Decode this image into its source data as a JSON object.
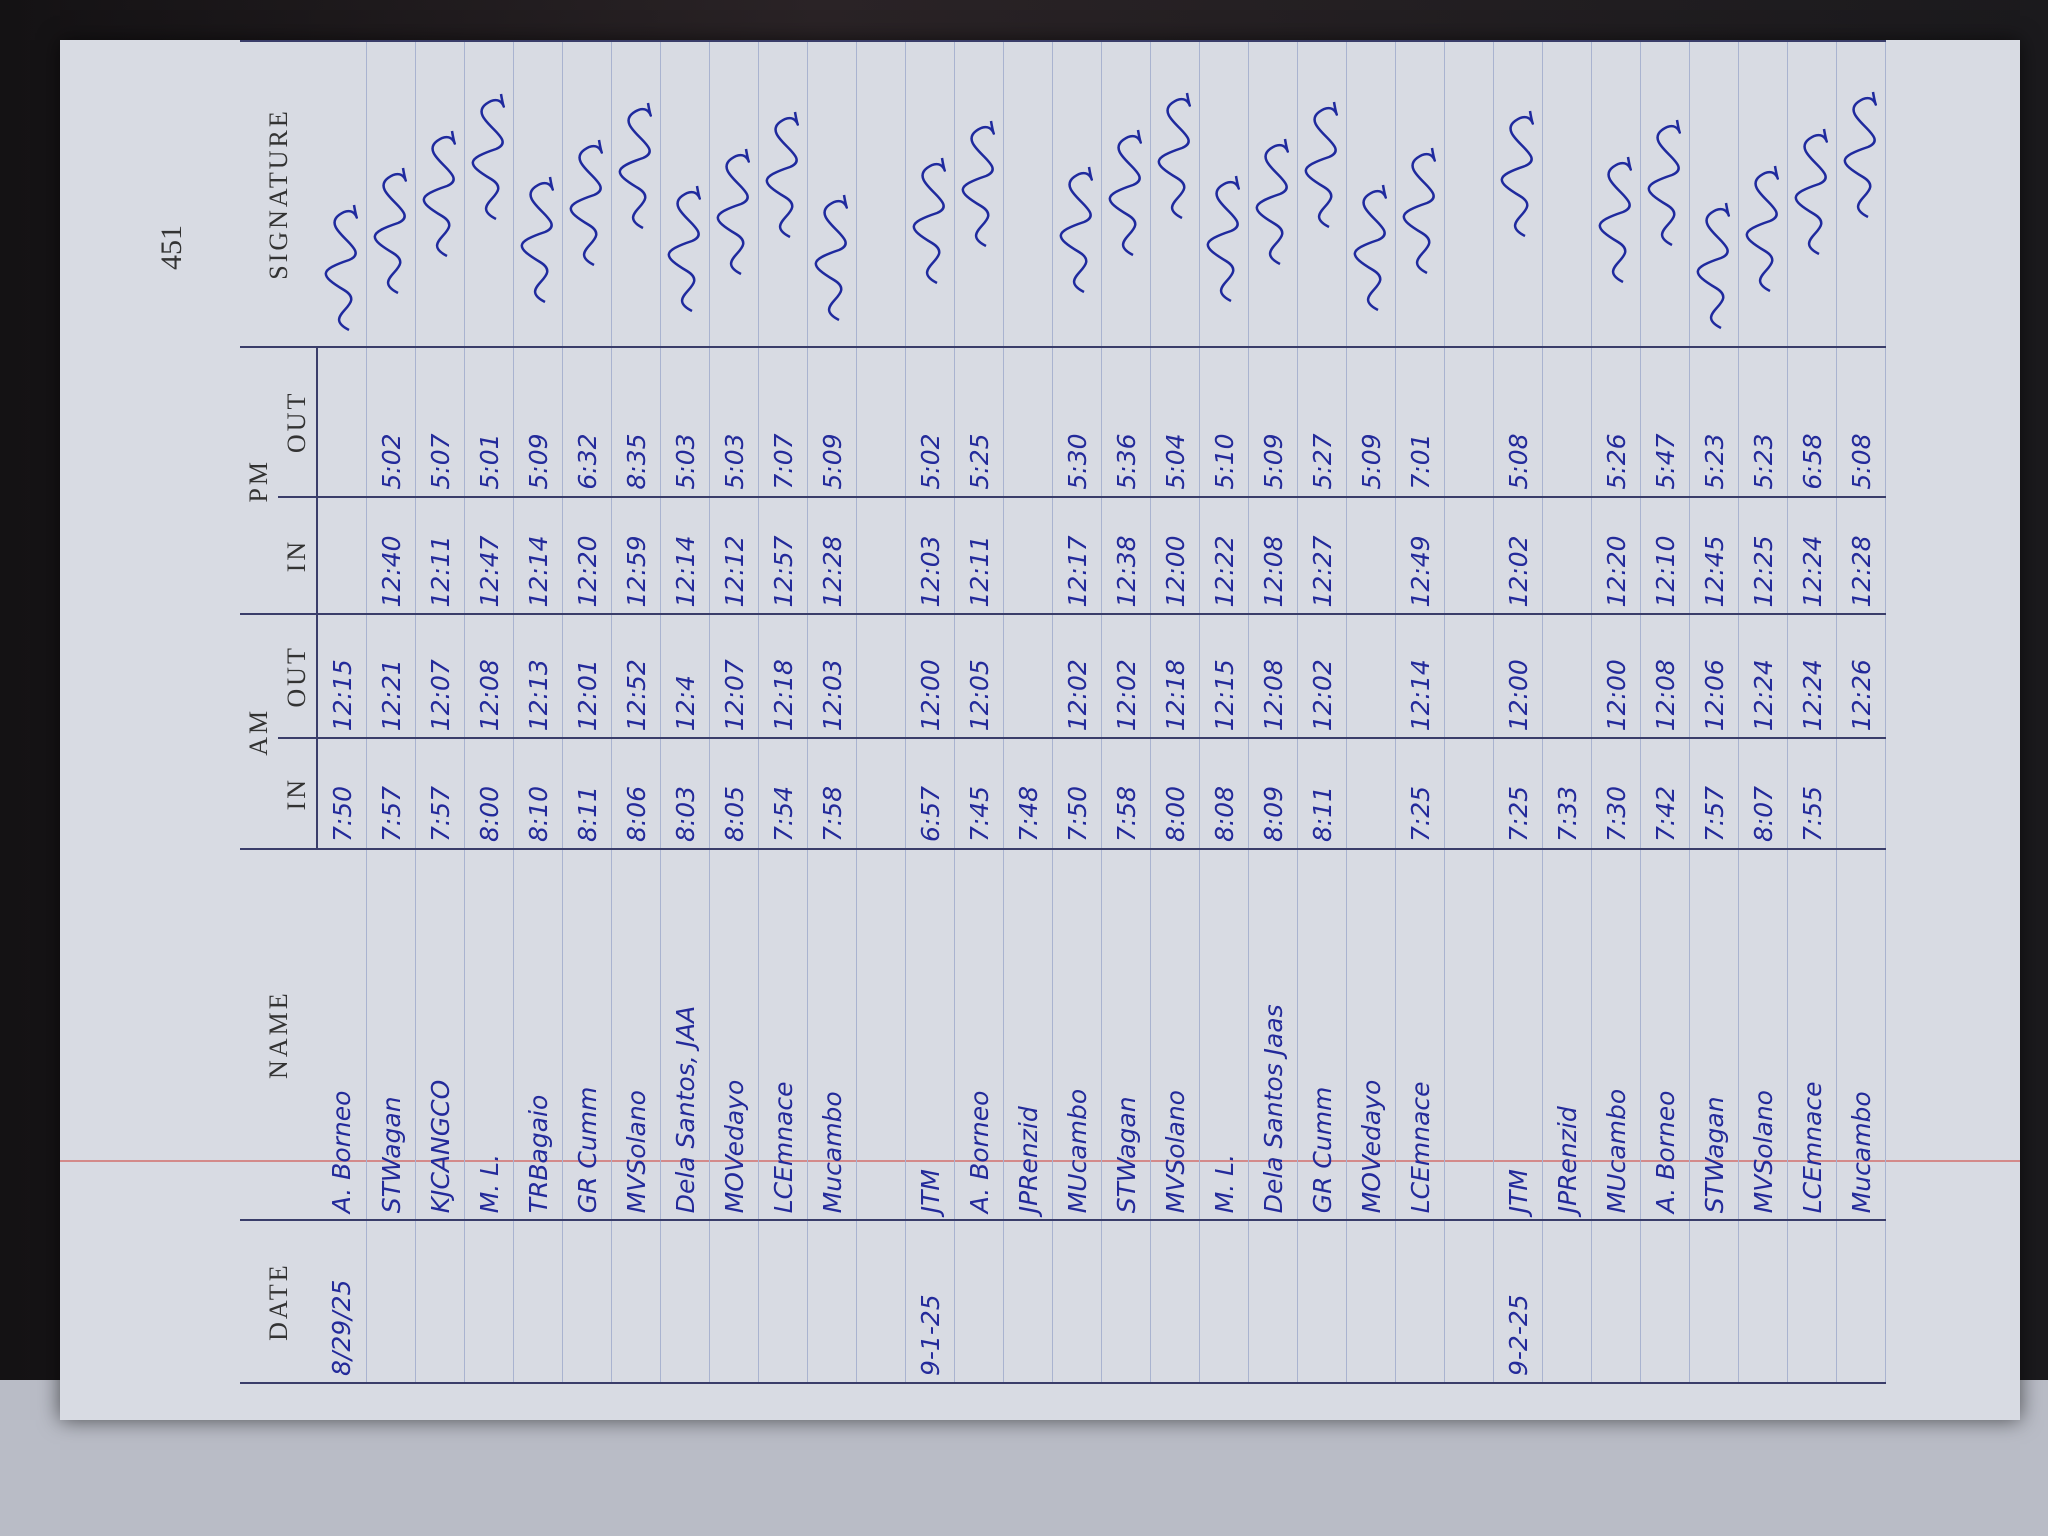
{
  "header": {
    "page_number": "451",
    "date": "DATE",
    "name": "NAME",
    "am": "AM",
    "pm": "PM",
    "in": "IN",
    "out": "OUT",
    "signature": "SIGNATURE"
  },
  "rows": [
    {
      "date": "8/29/25",
      "name": "A. Borneo",
      "am_in": "7:50",
      "am_out": "12:15"
    },
    {
      "name": "STWagan",
      "am_in": "7:57",
      "am_out": "12:21",
      "pm_in": "12:40",
      "pm_out": "5:02"
    },
    {
      "name": "KJCANGCO",
      "am_in": "7:57",
      "am_out": "12:07",
      "pm_in": "12:11",
      "pm_out": "5:07"
    },
    {
      "name": "M. L.",
      "am_in": "8:00",
      "am_out": "12:08",
      "pm_in": "12:47",
      "pm_out": "5:01"
    },
    {
      "name": "TRBagaio",
      "am_in": "8:10",
      "am_out": "12:13",
      "pm_in": "12:14",
      "pm_out": "5:09"
    },
    {
      "name": "GR Cumm",
      "am_in": "8:11",
      "am_out": "12:01",
      "pm_in": "12:20",
      "pm_out": "6:32"
    },
    {
      "name": "MVSolano",
      "am_in": "8:06",
      "am_out": "12:52",
      "pm_in": "12:59",
      "pm_out": "8:35"
    },
    {
      "name": "Dela Santos, JAA",
      "am_in": "8:03",
      "am_out": "12:4",
      "pm_in": "12:14",
      "pm_out": "5:03"
    },
    {
      "name": "MOVedayo",
      "am_in": "8:05",
      "am_out": "12:07",
      "pm_in": "12:12",
      "pm_out": "5:03"
    },
    {
      "name": "LCEmnace",
      "am_in": "7:54",
      "am_out": "12:18",
      "pm_in": "12:57",
      "pm_out": "7:07"
    },
    {
      "name": "Mucambo",
      "am_in": "7:58",
      "am_out": "12:03",
      "pm_in": "12:28",
      "pm_out": "5:09"
    },
    {
      "date": "9-1-25",
      "name": "JTM",
      "am_in": "6:57",
      "am_out": "12:00",
      "pm_in": "12:03",
      "pm_out": "5:02"
    },
    {
      "name": "A. Borneo",
      "am_in": "7:45",
      "am_out": "12:05",
      "pm_in": "12:11",
      "pm_out": "5:25"
    },
    {
      "name": "JPRenzid",
      "am_in": "7:48"
    },
    {
      "name": "MUcambo",
      "am_in": "7:50",
      "am_out": "12:02",
      "pm_in": "12:17",
      "pm_out": "5:30"
    },
    {
      "name": "STWagan",
      "am_in": "7:58",
      "am_out": "12:02",
      "pm_in": "12:38",
      "pm_out": "5:36"
    },
    {
      "name": "MVSolano",
      "am_in": "8:00",
      "am_out": "12:18",
      "pm_in": "12:00",
      "pm_out": "5:04"
    },
    {
      "name": "M. L.",
      "am_in": "8:08",
      "am_out": "12:15",
      "pm_in": "12:22",
      "pm_out": "5:10"
    },
    {
      "name": "Dela Santos Jaas",
      "am_in": "8:09",
      "am_out": "12:08",
      "pm_in": "12:08",
      "pm_out": "5:09"
    },
    {
      "name": "GR Cumm",
      "am_in": "8:11",
      "am_out": "12:02",
      "pm_in": "12:27",
      "pm_out": "5:27"
    },
    {
      "name": "MOVedayo",
      "pm_out": "5:09"
    },
    {
      "name": "LCEmnace",
      "am_in": "7:25",
      "am_out": "12:14",
      "pm_in": "12:49",
      "pm_out": "7:01"
    },
    {
      "date": "9-2-25",
      "name": "JTM",
      "am_in": "7:25",
      "am_out": "12:00",
      "pm_in": "12:02",
      "pm_out": "5:08"
    },
    {
      "name": "JPRenzid",
      "am_in": "7:33"
    },
    {
      "name": "MUcambo",
      "am_in": "7:30",
      "am_out": "12:00",
      "pm_in": "12:20",
      "pm_out": "5:26"
    },
    {
      "name": "A. Borneo",
      "am_in": "7:42",
      "am_out": "12:08",
      "pm_in": "12:10",
      "pm_out": "5:47"
    },
    {
      "name": "STWagan",
      "am_in": "7:57",
      "am_out": "12:06",
      "pm_in": "12:45",
      "pm_out": "5:23"
    },
    {
      "name": "MVSolano",
      "am_in": "8:07",
      "am_out": "12:24",
      "pm_in": "12:25",
      "pm_out": "5:23"
    },
    {
      "name": "LCEmnace",
      "am_in": "7:55",
      "am_out": "12:24",
      "pm_in": "12:24",
      "pm_out": "6:58"
    },
    {
      "name": "Mucambo",
      "am_out": "12:26",
      "pm_in": "12:28",
      "pm_out": "5:08"
    }
  ]
}
